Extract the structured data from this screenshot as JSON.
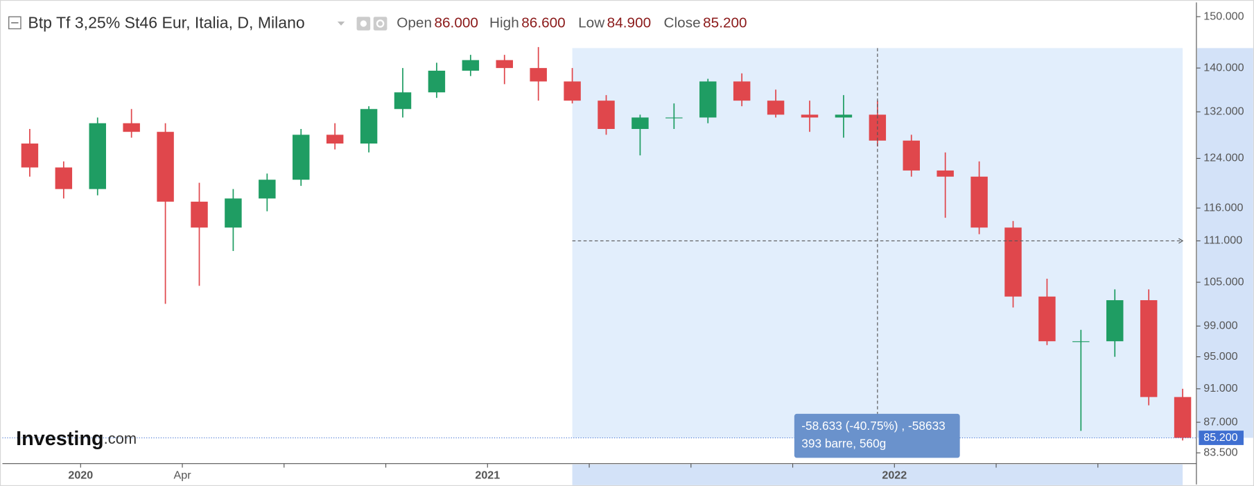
{
  "chart_data": {
    "type": "candlestick",
    "title": "Btp Tf 3,25% St46 Eur, Italia, D, Milano",
    "header": [
      {
        "label": "Open",
        "value": "86.000"
      },
      {
        "label": "High",
        "value": "86.600"
      },
      {
        "label": "Low",
        "value": "84.900"
      },
      {
        "label": "Close",
        "value": "85.200"
      }
    ],
    "categories": [
      "2019-11",
      "2019-12",
      "2020-01",
      "2020-02",
      "2020-03",
      "2020-04",
      "2020-05",
      "2020-06",
      "2020-07",
      "2020-08",
      "2020-09",
      "2020-10",
      "2020-11",
      "2020-12",
      "2021-01",
      "2021-02",
      "2021-03",
      "2021-04",
      "2021-05",
      "2021-06",
      "2021-07",
      "2021-08",
      "2021-09",
      "2021-10",
      "2021-11",
      "2021-12",
      "2022-01",
      "2022-02",
      "2022-03",
      "2022-04",
      "2022-05",
      "2022-06",
      "2022-07",
      "2022-08",
      "2022-09"
    ],
    "open": [
      126.5,
      122.5,
      119,
      130,
      128.5,
      117,
      113,
      117.5,
      120.5,
      128,
      126.5,
      132.5,
      135.5,
      139.5,
      141.5,
      140,
      137.5,
      134,
      129,
      131,
      131,
      137.5,
      134,
      131.5,
      131,
      131.5,
      127,
      122,
      121,
      113,
      103,
      97,
      97,
      102.5,
      90
    ],
    "high": [
      129,
      123.5,
      131,
      132.5,
      130,
      120,
      119,
      121.5,
      129,
      130,
      133,
      140,
      141,
      142.5,
      142.5,
      144,
      140,
      135,
      131.5,
      133.5,
      138,
      139,
      136,
      134,
      135,
      134,
      128,
      125,
      123.5,
      114,
      105.5,
      98.5,
      104,
      104,
      91
    ],
    "low": [
      121,
      117.5,
      118,
      127.5,
      102,
      104.5,
      109.5,
      115.5,
      119.5,
      125.5,
      125,
      131,
      134.5,
      138.5,
      137,
      134,
      133.5,
      128,
      124.5,
      129,
      130,
      133,
      131,
      128.5,
      127.5,
      126,
      121,
      114.5,
      112,
      101.5,
      96.5,
      86,
      95,
      89,
      84.9
    ],
    "close": [
      122.5,
      119,
      130,
      128.5,
      117,
      113,
      117.5,
      120.5,
      128,
      126.5,
      132.5,
      135.5,
      139.5,
      141.5,
      140,
      137.5,
      134,
      129,
      131,
      131,
      137.5,
      134,
      131.5,
      131,
      131.5,
      127,
      122,
      121,
      113,
      103,
      97,
      97,
      102.5,
      90,
      85.2
    ],
    "up_color": "#1f9d63",
    "down_color": "#e0474c",
    "log_scale": true,
    "ylim": [
      82.3,
      152.9
    ],
    "yticks": [
      {
        "value": 150,
        "label": "150.000"
      },
      {
        "value": 140,
        "label": "140.000"
      },
      {
        "value": 132,
        "label": "132.000"
      },
      {
        "value": 124,
        "label": "124.000"
      },
      {
        "value": 116,
        "label": "116.000"
      },
      {
        "value": 111,
        "label": "111.000"
      },
      {
        "value": 105,
        "label": "105.000"
      },
      {
        "value": 99,
        "label": "99.000"
      },
      {
        "value": 95,
        "label": "95.000"
      },
      {
        "value": 91,
        "label": "91.000"
      },
      {
        "value": 87,
        "label": "87.000"
      },
      {
        "value": 83.5,
        "label": "83.500"
      }
    ],
    "xticks": [
      {
        "value": "2020-01",
        "label": "2020"
      },
      {
        "value": "2020-04",
        "label": "Apr"
      },
      {
        "value": "2020-07",
        "label": null
      },
      {
        "value": "2020-10",
        "label": null
      },
      {
        "value": "2021-01",
        "label": "2021"
      },
      {
        "value": "2021-04",
        "label": null
      },
      {
        "value": "2021-07",
        "label": null
      },
      {
        "value": "2021-10",
        "label": null
      },
      {
        "value": "2022-01",
        "label": "2022"
      },
      {
        "value": "2022-04",
        "label": null
      },
      {
        "value": "2022-07",
        "label": null
      }
    ],
    "last_price": {
      "value": 85.2,
      "label": "85.200"
    },
    "crosshair": {
      "x": "2021-12",
      "y": 111
    },
    "measure": {
      "x_range": [
        "2021-03",
        "2022-09"
      ],
      "y_range": [
        85.2,
        143.8
      ],
      "lines": [
        "-58.633 (-40.75%) , -58633",
        "393 barre, 560g"
      ]
    },
    "brand": {
      "name": "Investing",
      "suffix": ".com"
    }
  }
}
